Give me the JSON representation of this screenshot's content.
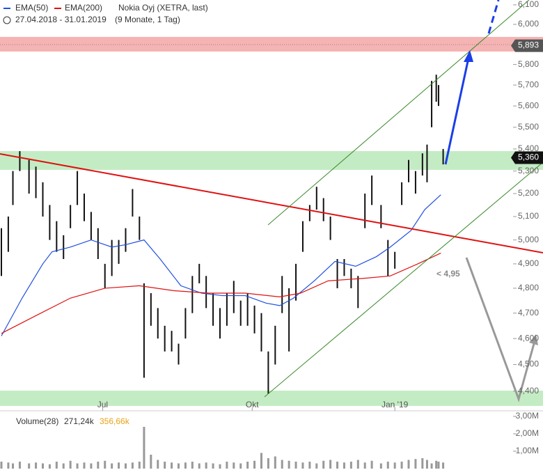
{
  "chart_data": [
    {
      "type": "price-bars",
      "title": "Nokia Oyj (XETRA, last)",
      "subtitle": "27.04.2018 - 31.01.2019",
      "period": "(9 Monate, 1 Tag)",
      "annotation": "< 4,95",
      "color": "#111111",
      "log_scale": true,
      "xlim": [
        0,
        236
      ],
      "ylim": [
        4340,
        6125
      ],
      "xticks": [
        {
          "value": 44,
          "label": "Jul"
        },
        {
          "value": 109,
          "label": "Okt"
        },
        {
          "value": 171,
          "label": "Jan '19"
        }
      ],
      "yticks": [
        {
          "value": 4400,
          "label": "4,400"
        },
        {
          "value": 4500,
          "label": "4,500"
        },
        {
          "value": 4600,
          "label": "4,600"
        },
        {
          "value": 4700,
          "label": "4,700"
        },
        {
          "value": 4800,
          "label": "4,800"
        },
        {
          "value": 4900,
          "label": "4,900"
        },
        {
          "value": 5000,
          "label": "5,000"
        },
        {
          "value": 5100,
          "label": "5,100"
        },
        {
          "value": 5200,
          "label": "5,200"
        },
        {
          "value": 5300,
          "label": "5,300"
        },
        {
          "value": 5400,
          "label": "5,400"
        },
        {
          "value": 5500,
          "label": "5,500"
        },
        {
          "value": 5600,
          "label": "5,600"
        },
        {
          "value": 5700,
          "label": "5,700"
        },
        {
          "value": 5800,
          "label": "5,800"
        },
        {
          "value": 6000,
          "label": "6,000"
        },
        {
          "value": 6100,
          "label": "6,100"
        }
      ],
      "price_tags": [
        {
          "value": 5893,
          "label": "5,893",
          "color": "#555555"
        },
        {
          "value": 5360,
          "label": "5,360",
          "color": "#111111"
        }
      ],
      "bars": {
        "x": [
          0,
          3,
          5,
          8,
          12,
          15,
          18,
          21,
          24,
          27,
          30,
          33,
          36,
          39,
          42,
          45,
          48,
          51,
          54,
          57,
          60,
          62,
          65,
          68,
          71,
          74,
          77,
          80,
          83,
          86,
          89,
          92,
          95,
          98,
          101,
          104,
          107,
          110,
          113,
          116,
          119,
          122,
          125,
          128,
          131,
          134,
          137,
          140,
          143,
          146,
          149,
          152,
          155,
          158,
          161,
          165,
          168,
          171,
          174,
          177,
          180,
          183,
          185,
          187,
          189,
          190,
          192
        ],
        "low": [
          4850,
          4950,
          5150,
          5300,
          5200,
          5180,
          5100,
          5000,
          4950,
          4920,
          5050,
          5150,
          5080,
          5000,
          4920,
          4800,
          4850,
          4900,
          4950,
          5100,
          5000,
          4450,
          4650,
          4600,
          4550,
          4550,
          4500,
          4600,
          4700,
          4820,
          4720,
          4650,
          4600,
          4650,
          4700,
          4650,
          4650,
          4620,
          4550,
          4390,
          4500,
          4700,
          4550,
          4750,
          4950,
          5080,
          5130,
          5080,
          5000,
          4800,
          4850,
          4800,
          4720,
          5050,
          5150,
          5050,
          4850,
          4880,
          5150,
          5250,
          5200,
          5280,
          5250,
          5500,
          5620,
          5600,
          5330
        ],
        "high": [
          5050,
          5100,
          5300,
          5390,
          5350,
          5320,
          5250,
          5150,
          5080,
          5020,
          5150,
          5300,
          5200,
          5120,
          5050,
          4900,
          5000,
          5000,
          5050,
          5220,
          5100,
          4820,
          4780,
          4720,
          4650,
          4630,
          4580,
          4720,
          4850,
          4900,
          4850,
          4780,
          4720,
          4780,
          4830,
          4750,
          4780,
          4730,
          4700,
          4550,
          4650,
          4850,
          4800,
          4900,
          5080,
          5150,
          5230,
          5180,
          5100,
          4920,
          4920,
          4880,
          4850,
          5200,
          5280,
          5150,
          5000,
          4950,
          5250,
          5350,
          5300,
          5380,
          5420,
          5720,
          5750,
          5700,
          5400
        ]
      },
      "series": [
        {
          "name": "EMA(50)",
          "color": "#1f4fe0",
          "x": [
            0,
            9,
            18,
            22,
            30,
            39,
            48,
            54,
            62,
            69,
            78,
            87,
            96,
            106,
            115,
            121,
            127,
            136,
            145,
            154,
            163,
            169,
            178,
            184,
            191
          ],
          "values": [
            4610,
            4760,
            4900,
            4950,
            4970,
            5000,
            4970,
            4980,
            5000,
            4920,
            4810,
            4780,
            4770,
            4770,
            4740,
            4730,
            4760,
            4830,
            4910,
            4890,
            4930,
            4970,
            5040,
            5130,
            5195
          ]
        },
        {
          "name": "EMA(200)",
          "color": "#dd1111",
          "x": [
            0,
            15,
            30,
            45,
            60,
            75,
            90,
            106,
            121,
            130,
            142,
            157,
            169,
            181,
            191
          ],
          "values": [
            4620,
            4690,
            4760,
            4800,
            4810,
            4790,
            4780,
            4780,
            4765,
            4780,
            4830,
            4840,
            4850,
            4900,
            4945
          ]
        }
      ]
    },
    {
      "type": "bar",
      "title": "Volume(28)",
      "labels": [
        {
          "text": "271,24k",
          "color": "#333333"
        },
        {
          "text": "356,66k",
          "color": "#e8a317"
        }
      ],
      "color": "#999999",
      "ylim": [
        0,
        3.1
      ],
      "yticks": [
        {
          "value": 1,
          "label": "1,00M"
        },
        {
          "value": 2,
          "label": "2,00M"
        },
        {
          "value": 3,
          "label": "3,00M"
        }
      ],
      "x": [
        0,
        3,
        5,
        8,
        12,
        15,
        18,
        21,
        24,
        27,
        30,
        33,
        36,
        39,
        42,
        45,
        48,
        51,
        54,
        57,
        60,
        62,
        65,
        68,
        71,
        74,
        77,
        80,
        83,
        86,
        89,
        92,
        95,
        98,
        101,
        104,
        107,
        110,
        113,
        116,
        119,
        122,
        125,
        128,
        131,
        134,
        137,
        140,
        143,
        146,
        149,
        152,
        155,
        158,
        161,
        165,
        168,
        171,
        174,
        177,
        180,
        183,
        185,
        187,
        189,
        190,
        192
      ],
      "values": [
        0.4,
        0.35,
        0.3,
        0.4,
        0.3,
        0.35,
        0.3,
        0.25,
        0.4,
        0.3,
        0.45,
        0.3,
        0.35,
        0.3,
        0.4,
        0.45,
        0.3,
        0.35,
        0.3,
        0.35,
        0.4,
        2.4,
        0.8,
        0.5,
        0.4,
        0.35,
        0.3,
        0.35,
        0.4,
        0.3,
        0.35,
        0.3,
        0.25,
        0.4,
        0.35,
        0.3,
        0.4,
        0.45,
        0.9,
        0.6,
        0.7,
        0.5,
        0.45,
        0.4,
        0.35,
        0.4,
        0.3,
        0.45,
        0.5,
        0.4,
        0.35,
        0.4,
        0.5,
        0.35,
        0.45,
        0.3,
        0.4,
        0.35,
        0.4,
        0.5,
        0.55,
        0.6,
        0.5,
        0.3,
        0.45,
        0.4,
        0.35
      ]
    }
  ]
}
